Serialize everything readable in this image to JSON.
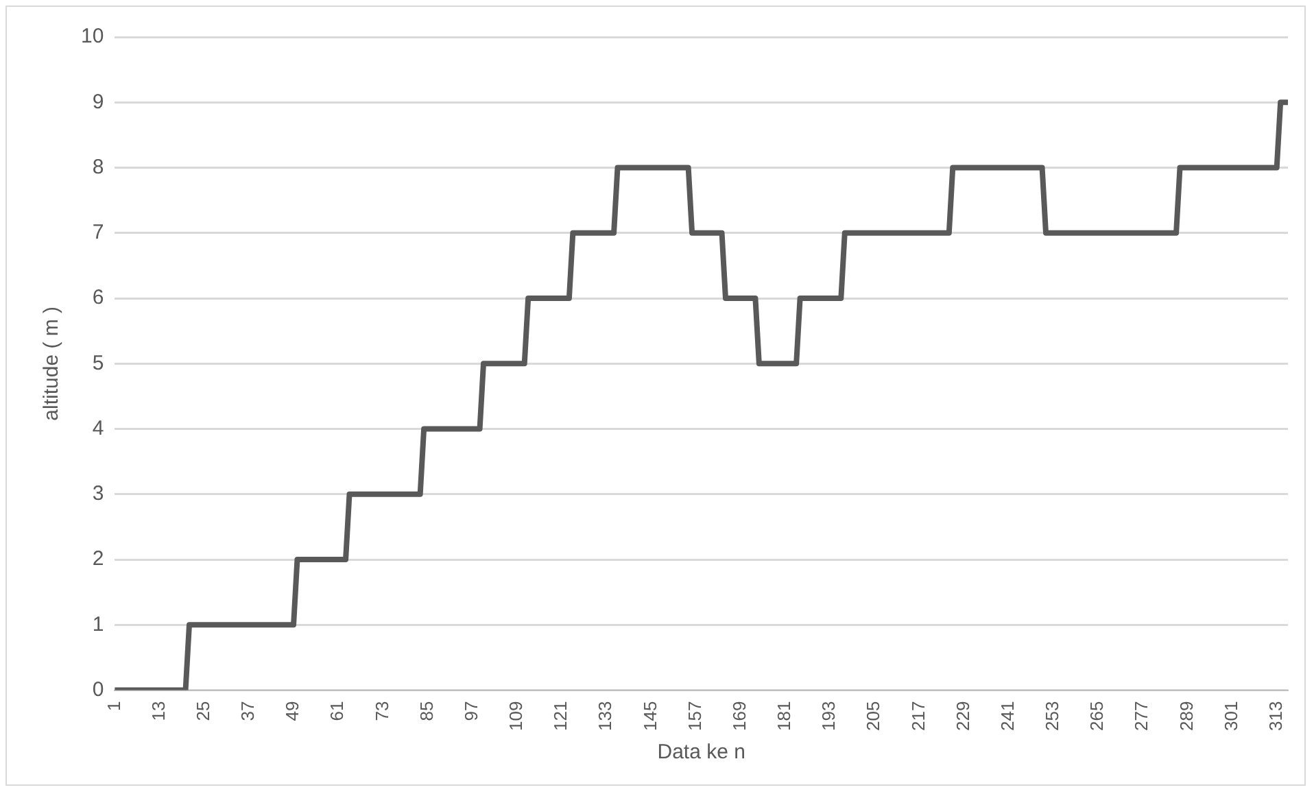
{
  "chart_data": {
    "type": "line",
    "xlabel": "Data ke n",
    "ylabel": "altitude ( m )",
    "x": [
      1,
      20,
      21,
      49,
      50,
      63,
      64,
      83,
      84,
      99,
      100,
      111,
      112,
      123,
      124,
      135,
      136,
      155,
      156,
      164,
      165,
      173,
      174,
      184,
      185,
      196,
      197,
      225,
      226,
      250,
      251,
      286,
      287,
      313,
      314,
      316
    ],
    "series": [
      {
        "color": "#595959",
        "values": [
          0,
          0,
          1,
          1,
          2,
          2,
          3,
          3,
          4,
          4,
          5,
          5,
          6,
          6,
          7,
          7,
          8,
          8,
          7,
          7,
          6,
          6,
          5,
          5,
          6,
          6,
          7,
          7,
          8,
          8,
          7,
          7,
          8,
          8,
          9,
          9
        ]
      }
    ],
    "xlim": [
      1,
      316
    ],
    "xticks": [
      1,
      13,
      25,
      37,
      49,
      61,
      73,
      85,
      97,
      109,
      121,
      133,
      145,
      157,
      169,
      181,
      193,
      205,
      217,
      229,
      241,
      253,
      265,
      277,
      289,
      301,
      313
    ],
    "ylim": [
      0,
      10
    ],
    "yticks": [
      0,
      1,
      2,
      3,
      4,
      5,
      6,
      7,
      8,
      9,
      10
    ],
    "grid": "y",
    "legend": false,
    "marker": "none",
    "line_style": "solid"
  }
}
